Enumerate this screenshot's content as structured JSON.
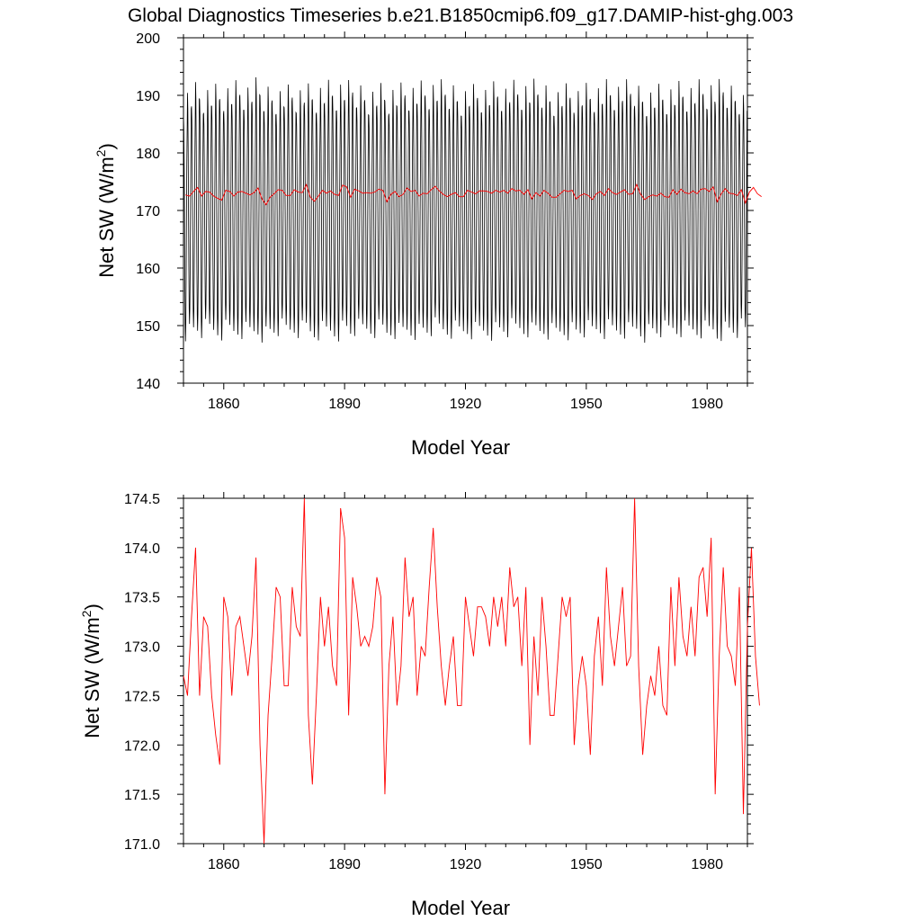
{
  "figure": {
    "title": "Global Diagnostics Timeseries b.e21.B1850cmip6.f09_g17.DAMIP-hist-ghg.003"
  },
  "chart_data": [
    {
      "type": "line",
      "title": "Global Diagnostics Timeseries b.e21.B1850cmip6.f09_g17.DAMIP-hist-ghg.003",
      "xlabel": "Model Year",
      "ylabel": "Net SW (W/m",
      "ylabel_sup": "2",
      "ylabel_close": ")",
      "xlim": [
        1850,
        1990
      ],
      "ylim": [
        140,
        200
      ],
      "xticks": [
        1860,
        1890,
        1920,
        1950,
        1980
      ],
      "xtick_labels": [
        "1860",
        "1890",
        "1920",
        "1950",
        "1980"
      ],
      "yticks": [
        140,
        150,
        160,
        170,
        180,
        190,
        200
      ],
      "ytick_labels": [
        "140",
        "150",
        "160",
        "170",
        "180",
        "190",
        "200"
      ],
      "grid": false,
      "series": [
        {
          "kind": "monthly",
          "color": "#000000",
          "years": [
            1850,
            1989
          ],
          "seasonal_mean": 170.0,
          "seasonal_peak_range": [
            186.5,
            192.8
          ],
          "seasonal_trough_range": [
            147.3,
            151.0
          ]
        },
        {
          "kind": "annual",
          "color": "#ff0000",
          "ref": "annual_mean"
        }
      ]
    },
    {
      "type": "line",
      "xlabel": "Model Year",
      "ylabel": "Net SW (W/m",
      "ylabel_sup": "2",
      "ylabel_close": ")",
      "xlim": [
        1850,
        1990
      ],
      "ylim": [
        171.0,
        174.5
      ],
      "xticks": [
        1860,
        1890,
        1920,
        1950,
        1980
      ],
      "xtick_labels": [
        "1860",
        "1890",
        "1920",
        "1950",
        "1980"
      ],
      "yticks": [
        171.0,
        171.5,
        172.0,
        172.5,
        173.0,
        173.5,
        174.0,
        174.5
      ],
      "ytick_labels": [
        "171.0",
        "171.5",
        "172.0",
        "172.5",
        "173.0",
        "173.5",
        "174.0",
        "174.5"
      ],
      "grid": false,
      "series": [
        {
          "kind": "annual",
          "color": "#ff0000",
          "ref": "annual_mean"
        }
      ]
    }
  ],
  "annual_mean": {
    "start_year": 1850,
    "values": [
      172.7,
      172.5,
      173.3,
      174.0,
      172.5,
      173.3,
      173.2,
      172.5,
      172.1,
      171.8,
      173.5,
      173.3,
      172.5,
      173.2,
      173.3,
      173.0,
      172.7,
      173.1,
      173.9,
      172.0,
      171.0,
      172.3,
      172.9,
      173.6,
      173.5,
      172.6,
      172.6,
      173.6,
      173.2,
      173.1,
      174.5,
      172.3,
      171.6,
      172.5,
      173.5,
      173.0,
      173.4,
      172.8,
      172.6,
      174.4,
      174.1,
      172.3,
      173.7,
      173.4,
      173.0,
      173.1,
      173.0,
      173.2,
      173.7,
      173.5,
      171.5,
      172.8,
      173.3,
      172.4,
      172.8,
      173.9,
      173.3,
      173.5,
      172.5,
      173.0,
      172.9,
      173.6,
      174.2,
      173.4,
      172.8,
      172.4,
      172.8,
      173.1,
      172.4,
      172.4,
      173.5,
      173.2,
      172.9,
      173.4,
      173.4,
      173.3,
      173.0,
      173.5,
      173.2,
      173.5,
      173.0,
      173.8,
      173.4,
      173.5,
      172.8,
      173.6,
      172.0,
      173.1,
      172.5,
      173.5,
      173.0,
      172.3,
      172.3,
      172.9,
      173.5,
      173.3,
      173.5,
      172.0,
      172.6,
      172.9,
      172.6,
      171.9,
      172.9,
      173.3,
      172.6,
      173.8,
      173.1,
      172.8,
      173.2,
      173.6,
      172.8,
      172.9,
      174.5,
      172.8,
      171.9,
      172.4,
      172.7,
      172.5,
      173.0,
      172.4,
      172.3,
      173.6,
      172.8,
      173.7,
      173.1,
      172.9,
      173.4,
      172.9,
      173.7,
      173.8,
      173.3,
      174.1,
      171.5,
      172.9,
      173.8,
      173.0,
      172.9,
      172.6,
      173.6,
      171.3,
      173.2,
      174.0,
      172.9,
      172.4
    ]
  }
}
